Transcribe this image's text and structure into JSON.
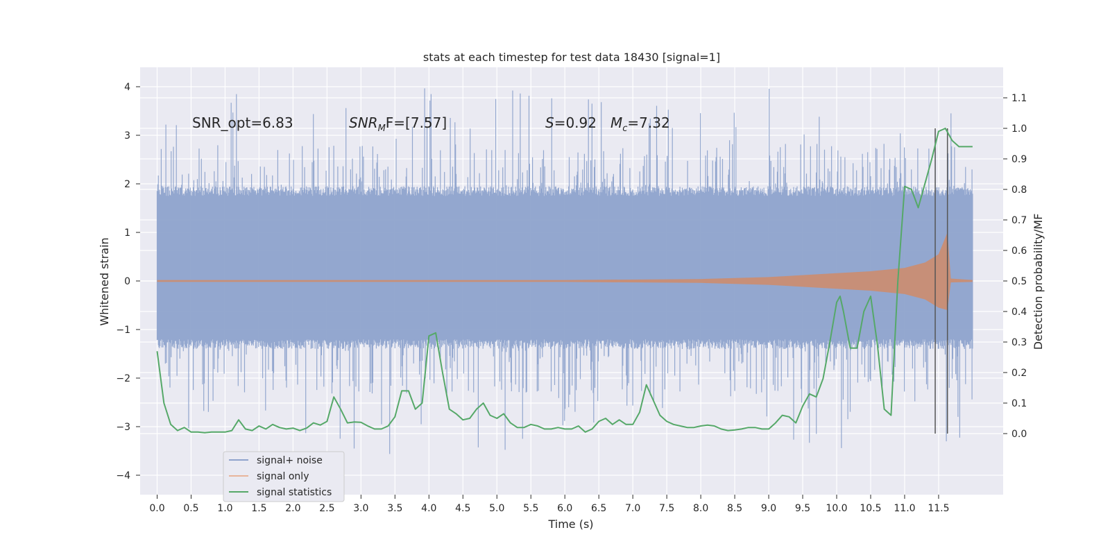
{
  "chart_data": {
    "type": "line",
    "title": "stats at each timestep for test data 18430 [signal=1]",
    "xlabel": "Time (s)",
    "ylabel_left": "Whitened strain",
    "ylabel_right": "Detection probability/MF",
    "xlim": [
      -0.25,
      12.45
    ],
    "ylim_left": [
      -4.4,
      4.4
    ],
    "ylim_right": [
      -0.2,
      1.2
    ],
    "x_ticks": [
      "0.0",
      "0.5",
      "1.0",
      "1.5",
      "2.0",
      "2.5",
      "3.0",
      "3.5",
      "4.0",
      "4.5",
      "5.0",
      "5.5",
      "6.0",
      "6.5",
      "7.0",
      "7.5",
      "8.0",
      "8.5",
      "9.0",
      "9.5",
      "10.0",
      "10.5",
      "11.0",
      "11.5"
    ],
    "y_ticks_left": [
      "4",
      "3",
      "2",
      "1",
      "0",
      "−1",
      "−2",
      "−3",
      "−4"
    ],
    "y_ticks_right": [
      "1.1",
      "1.0",
      "0.9",
      "0.8",
      "0.7",
      "0.6",
      "0.5",
      "0.4",
      "0.3",
      "0.2",
      "0.1",
      "0.0"
    ],
    "grid": true,
    "legend_position": "lower-left",
    "annotations": {
      "snr_opt": "SNR_opt=6.83",
      "snr_mf_main": "SNR",
      "snr_mf_sub": "M",
      "snr_mf_rest": "F=[7.57]",
      "s_main": "S",
      "s_rest": "=0.92",
      "mc_main": "M",
      "mc_sub": "c",
      "mc_rest": "=7.32"
    },
    "vertical_lines_x": [
      11.45,
      11.63
    ],
    "series": [
      {
        "name": "signal+ noise",
        "color": "#8ea3cc",
        "kind": "noise-band",
        "x_range": [
          0.0,
          12.0
        ],
        "core_band": [
          -1.3,
          1.85
        ],
        "peak_max": 4.0,
        "peak_min": -3.6
      },
      {
        "name": "signal only",
        "color": "#dd8452",
        "kind": "chirp",
        "envelope": [
          [
            0.0,
            0.02
          ],
          [
            6.0,
            0.02
          ],
          [
            8.0,
            0.04
          ],
          [
            9.0,
            0.08
          ],
          [
            10.0,
            0.16
          ],
          [
            10.5,
            0.2
          ],
          [
            11.0,
            0.27
          ],
          [
            11.3,
            0.38
          ],
          [
            11.5,
            0.55
          ],
          [
            11.63,
            1.0
          ],
          [
            11.68,
            0.05
          ],
          [
            12.0,
            0.02
          ]
        ]
      },
      {
        "name": "signal statistics",
        "color": "#55a868",
        "kind": "line",
        "x": [
          0.0,
          0.1,
          0.2,
          0.3,
          0.4,
          0.5,
          0.6,
          0.7,
          0.8,
          0.9,
          1.0,
          1.1,
          1.2,
          1.3,
          1.4,
          1.5,
          1.6,
          1.7,
          1.8,
          1.9,
          2.0,
          2.1,
          2.2,
          2.3,
          2.4,
          2.5,
          2.6,
          2.7,
          2.8,
          2.9,
          3.0,
          3.1,
          3.2,
          3.3,
          3.4,
          3.5,
          3.6,
          3.7,
          3.8,
          3.9,
          4.0,
          4.1,
          4.2,
          4.3,
          4.4,
          4.5,
          4.6,
          4.7,
          4.8,
          4.9,
          5.0,
          5.1,
          5.2,
          5.3,
          5.4,
          5.5,
          5.6,
          5.7,
          5.8,
          5.9,
          6.0,
          6.1,
          6.2,
          6.3,
          6.4,
          6.5,
          6.6,
          6.7,
          6.8,
          6.9,
          7.0,
          7.1,
          7.2,
          7.3,
          7.4,
          7.5,
          7.6,
          7.7,
          7.8,
          7.9,
          8.0,
          8.1,
          8.2,
          8.3,
          8.4,
          8.5,
          8.6,
          8.7,
          8.8,
          8.9,
          9.0,
          9.1,
          9.2,
          9.3,
          9.4,
          9.5,
          9.6,
          9.7,
          9.8,
          9.9,
          10.0,
          10.05,
          10.1,
          10.2,
          10.3,
          10.4,
          10.5,
          10.6,
          10.7,
          10.8,
          10.9,
          11.0,
          11.1,
          11.2,
          11.3,
          11.4,
          11.5,
          11.6,
          11.7,
          11.8,
          11.9,
          12.0
        ],
        "y": [
          0.27,
          0.1,
          0.03,
          0.01,
          0.02,
          0.005,
          0.005,
          0.003,
          0.005,
          0.005,
          0.005,
          0.01,
          0.045,
          0.015,
          0.01,
          0.025,
          0.015,
          0.03,
          0.02,
          0.015,
          0.018,
          0.01,
          0.018,
          0.035,
          0.028,
          0.04,
          0.12,
          0.08,
          0.035,
          0.038,
          0.037,
          0.025,
          0.015,
          0.015,
          0.025,
          0.055,
          0.14,
          0.14,
          0.08,
          0.1,
          0.32,
          0.33,
          0.2,
          0.08,
          0.065,
          0.045,
          0.05,
          0.08,
          0.1,
          0.06,
          0.05,
          0.065,
          0.035,
          0.02,
          0.02,
          0.03,
          0.025,
          0.015,
          0.015,
          0.02,
          0.015,
          0.015,
          0.025,
          0.005,
          0.015,
          0.04,
          0.05,
          0.03,
          0.045,
          0.03,
          0.03,
          0.07,
          0.16,
          0.11,
          0.06,
          0.04,
          0.03,
          0.025,
          0.02,
          0.02,
          0.025,
          0.028,
          0.025,
          0.015,
          0.01,
          0.012,
          0.015,
          0.02,
          0.02,
          0.015,
          0.015,
          0.035,
          0.06,
          0.055,
          0.035,
          0.09,
          0.13,
          0.12,
          0.18,
          0.3,
          0.43,
          0.45,
          0.4,
          0.28,
          0.28,
          0.4,
          0.45,
          0.29,
          0.08,
          0.06,
          0.5,
          0.81,
          0.8,
          0.74,
          0.82,
          0.9,
          0.99,
          1.0,
          0.96,
          0.94,
          0.94,
          0.94
        ]
      }
    ]
  }
}
